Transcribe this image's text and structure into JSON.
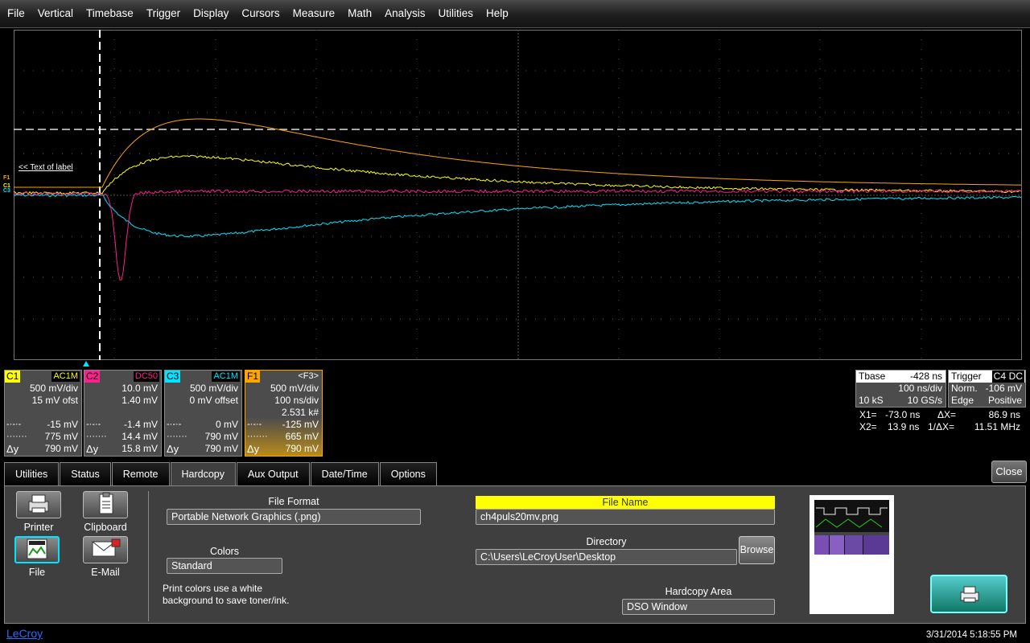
{
  "menu": [
    "File",
    "Vertical",
    "Timebase",
    "Trigger",
    "Display",
    "Cursors",
    "Measure",
    "Math",
    "Analysis",
    "Utilities",
    "Help"
  ],
  "grid": {
    "label_text": "<< Text of label",
    "ref_marks": [
      {
        "text": "F1",
        "color": "#ffa500"
      },
      {
        "text": "C1",
        "color": "#ffff00"
      },
      {
        "text": "C3",
        "color": "#00e5ff"
      }
    ]
  },
  "channels": [
    {
      "tag": "C1",
      "coupling": "AC1M",
      "color": "#ffff00",
      "vdiv": "500 mV/div",
      "offset": "15 mV ofst",
      "m1_val": "-15 mV",
      "m2_val": "775 mV",
      "dy_val": "790 mV"
    },
    {
      "tag": "C2",
      "coupling": "DC50",
      "color": "#ff1f8e",
      "vdiv": "10.0 mV",
      "offset": "1.40 mV",
      "m1_val": "-1.4 mV",
      "m2_val": "14.4 mV",
      "dy_val": "15.8 mV"
    },
    {
      "tag": "C3",
      "coupling": "AC1M",
      "color": "#00e5ff",
      "vdiv": "500 mV/div",
      "offset": "0 mV offset",
      "m1_val": "0 mV",
      "m2_val": "790 mV",
      "dy_val": "790 mV"
    }
  ],
  "math": {
    "tag": "F1",
    "source": "<F3>",
    "color": "#ffa500",
    "vdiv": "500 mV/div",
    "tdiv": "100 ns/div",
    "count": "2.531 k#",
    "m1_val": "-125 mV",
    "m2_val": "665 mV",
    "dy_val": "790 mV"
  },
  "marker_labels": {
    "m1": "-·-·-",
    "m2": "·······",
    "dy": "Δy"
  },
  "timebase": {
    "label": "Tbase",
    "delay": "-428 ns",
    "tdiv": "100 ns/div",
    "samples": "10 kS",
    "rate": "10 GS/s"
  },
  "trigger": {
    "label": "Trigger",
    "source": "C4",
    "coupling": "DC",
    "mode": "Norm.",
    "level": "-106 mV",
    "type": "Edge",
    "slope": "Positive"
  },
  "cursors": {
    "x1_label": "X1=",
    "x1": "-73.0 ns",
    "dx_label": "ΔX=",
    "dx": "86.9 ns",
    "x2_label": "X2=",
    "x2": "13.9 ns",
    "inv_label": "1/ΔX=",
    "inv": "11.51 MHz"
  },
  "tabs": [
    "Utilities",
    "Status",
    "Remote",
    "Hardcopy",
    "Aux Output",
    "Date/Time",
    "Options"
  ],
  "active_tab": "Hardcopy",
  "close_label": "Close",
  "hardcopy": {
    "printer_label": "Printer",
    "clipboard_label": "Clipboard",
    "file_label": "File",
    "email_label": "E-Mail",
    "file_format_label": "File Format",
    "file_format": "Portable Network Graphics (.png)",
    "colors_label": "Colors",
    "colors": "Standard",
    "note": "Print colors use a white background to save toner/ink.",
    "file_name_label": "File Name",
    "file_name": "ch4puls20mv.png",
    "directory_label": "Directory",
    "directory": "C:\\Users\\LeCroyUser\\Desktop",
    "browse_label": "Browse",
    "area_label": "Hardcopy Area",
    "area": "DSO Window"
  },
  "status": {
    "logo": "LeCroy",
    "datetime": "3/31/2014 5:18:55 PM"
  },
  "trace_colors": {
    "F1": "#ffa500",
    "C1": "#ffff00",
    "C2": "#ff1f8e",
    "C3": "#00e5ff"
  }
}
